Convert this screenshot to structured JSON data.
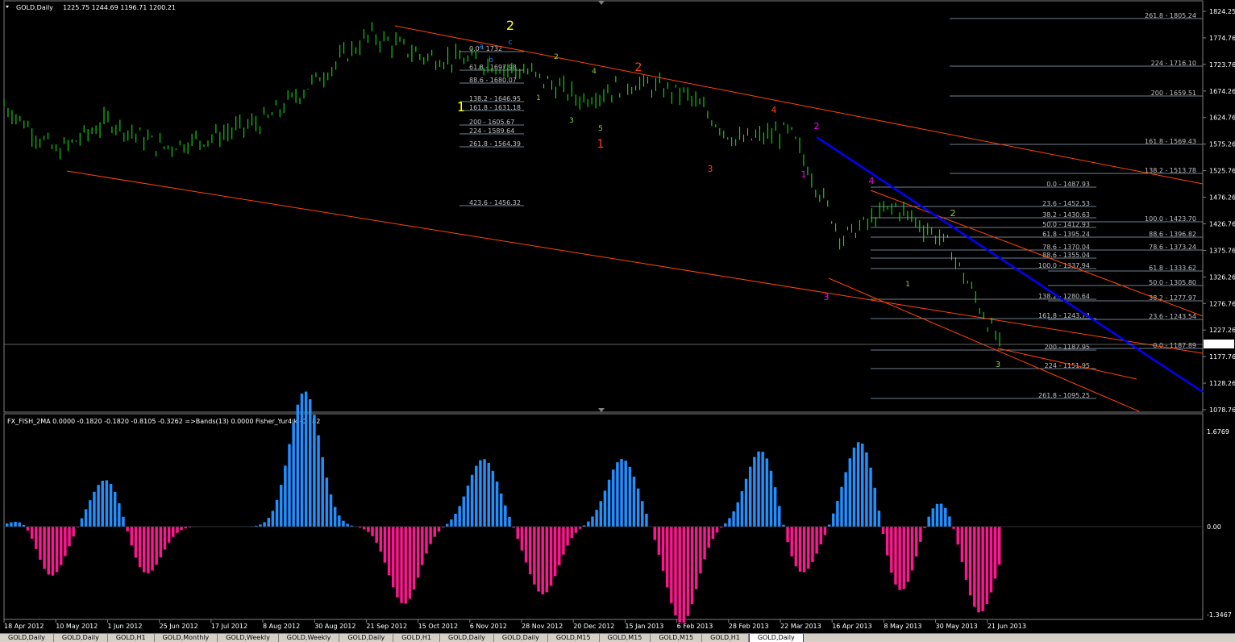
{
  "header": {
    "symbol": "GOLD,Daily",
    "ohlc": "1225.75 1244.69 1196.71 1200.21",
    "indicator": "FX_FISH_2MA 0.0000 -0.1820 -0.1820 -0.8105 -0.3262   =>Bands(13) 0.0000  Fisher_Yur4ik -0.182"
  },
  "colors": {
    "candle": "#00ff00",
    "channel": "#ff4500",
    "trendline": "#0000ff",
    "fib": "#708090",
    "hist_pos": "#1e90ff",
    "hist_neg": "#ff1493",
    "signal": "#ffffff",
    "bands": "#1e90ff"
  },
  "price_axis": [
    "1824.25",
    "1774.76",
    "1723.76",
    "1674.26",
    "1624.76",
    "1575.26",
    "1525.76",
    "1476.26",
    "1426.76",
    "1375.76",
    "1326.26",
    "1276.76",
    "1227.26",
    "1177.76",
    "1128.26",
    "1078.76"
  ],
  "current_price": "1200.21",
  "indicator_axis": [
    "1.6769",
    "0.00",
    "-1.3467"
  ],
  "date_axis": [
    "18 Apr 2012",
    "10 May 2012",
    "1 Jun 2012",
    "25 Jun 2012",
    "17 Jul 2012",
    "8 Aug 2012",
    "30 Aug 2012",
    "21 Sep 2012",
    "15 Oct 2012",
    "6 Nov 2012",
    "28 Nov 2012",
    "20 Dec 2012",
    "15 Jan 2013",
    "6 Feb 2013",
    "28 Feb 2013",
    "22 Mar 2013",
    "16 Apr 2013",
    "8 May 2013",
    "30 May 2013",
    "21 Jun 2013"
  ],
  "fib_labels": [
    "0.0 - 1732",
    "61.8 - 1697.98",
    "88.6 - 1680.07",
    "138.2 - 1646.95",
    "161.8 - 1631.18",
    "200 - 1605.67",
    "224 - 1589.64",
    "261.8 - 1564.39",
    "423.6 - 1456.32",
    "261.8 - 1805.24",
    "224 - 1716.10",
    "200 - 1659.51",
    "161.8 - 1569.43",
    "138.2 - 1513.78",
    "0.0 - 1487.93",
    "23.6 - 1452.53",
    "38.2 - 1430.63",
    "50.0 - 1412.93",
    "61.8 - 1395.24",
    "78.6 - 1370.04",
    "88.6 - 1355.04",
    "100.0 - 1337.94",
    "138.2 - 1280.64",
    "161.8 - 1243.74",
    "200 - 1187.95",
    "224 - 1151.95",
    "261.8 - 1095.25",
    "100.0 - 1423.70",
    "88.6 - 1396.82",
    "78.6 - 1373.24",
    "61.8 - 1333.62",
    "50.0 - 1305.80",
    "38.2 - 1277.97",
    "23.6 - 1243.54",
    "0.0 - 1187.89"
  ],
  "wave_labels": [
    "a",
    "b",
    "c",
    "1",
    "2",
    "1",
    "2",
    "3",
    "4",
    "5",
    "1",
    "2",
    "3",
    "4",
    "1",
    "2",
    "3",
    "4",
    "1",
    "2",
    "3"
  ],
  "tabs": [
    "GOLD,Daily",
    "GOLD,Daily",
    "GOLD,H1",
    "GOLD,Monthly",
    "GOLD,Weekly",
    "GOLD,Weekly",
    "GOLD,Daily",
    "GOLD,H1",
    "GOLD,Daily",
    "GOLD,Daily",
    "GOLD,M15",
    "GOLD,M15",
    "GOLD,M15",
    "GOLD,H1",
    "GOLD,Daily"
  ],
  "chart_data": {
    "type": "line",
    "title": "GOLD,Daily",
    "ylim": [
      1078.76,
      1824.25
    ],
    "series": [
      {
        "name": "GOLD,Daily",
        "x": [
          "18 Apr 2012",
          "10 May 2012",
          "1 Jun 2012",
          "25 Jun 2012",
          "17 Jul 2012",
          "8 Aug 2012",
          "30 Aug 2012",
          "21 Sep 2012",
          "15 Oct 2012",
          "6 Nov 2012",
          "28 Nov 2012",
          "20 Dec 2012",
          "15 Jan 2013",
          "6 Feb 2013",
          "28 Feb 2013",
          "22 Mar 2013",
          "16 Apr 2013",
          "8 May 2013",
          "30 May 2013",
          "21 Jun 2013"
        ],
        "values": [
          1650,
          1560,
          1620,
          1570,
          1590,
          1620,
          1700,
          1780,
          1740,
          1730,
          1710,
          1660,
          1690,
          1670,
          1580,
          1600,
          1400,
          1460,
          1390,
          1200
        ]
      }
    ],
    "grid": false,
    "legend": "none"
  }
}
